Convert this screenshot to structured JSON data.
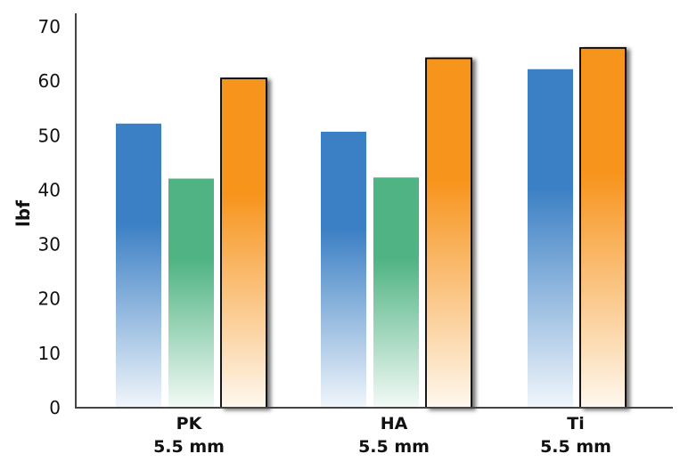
{
  "chart_data": {
    "type": "bar",
    "title": "",
    "xlabel": "",
    "ylabel": "lbf",
    "ylim": [
      0,
      70
    ],
    "yticks": [
      0,
      10,
      20,
      30,
      40,
      50,
      60,
      70
    ],
    "grid": false,
    "categories": [
      {
        "line1": "PK",
        "line2": "5.5 mm"
      },
      {
        "line1": "HA",
        "line2": "5.5 mm"
      },
      {
        "line1": "Ti",
        "line2": "5.5 mm"
      }
    ],
    "series": [
      {
        "color": "#3b7fc4",
        "values": [
          52.2,
          50.7,
          62.2
        ]
      },
      {
        "color": "#4fb383",
        "values": [
          42.1,
          42.3,
          null
        ]
      },
      {
        "color": "#f7941d",
        "outlined": true,
        "values": [
          60.5,
          64.2,
          66.1
        ]
      }
    ]
  }
}
